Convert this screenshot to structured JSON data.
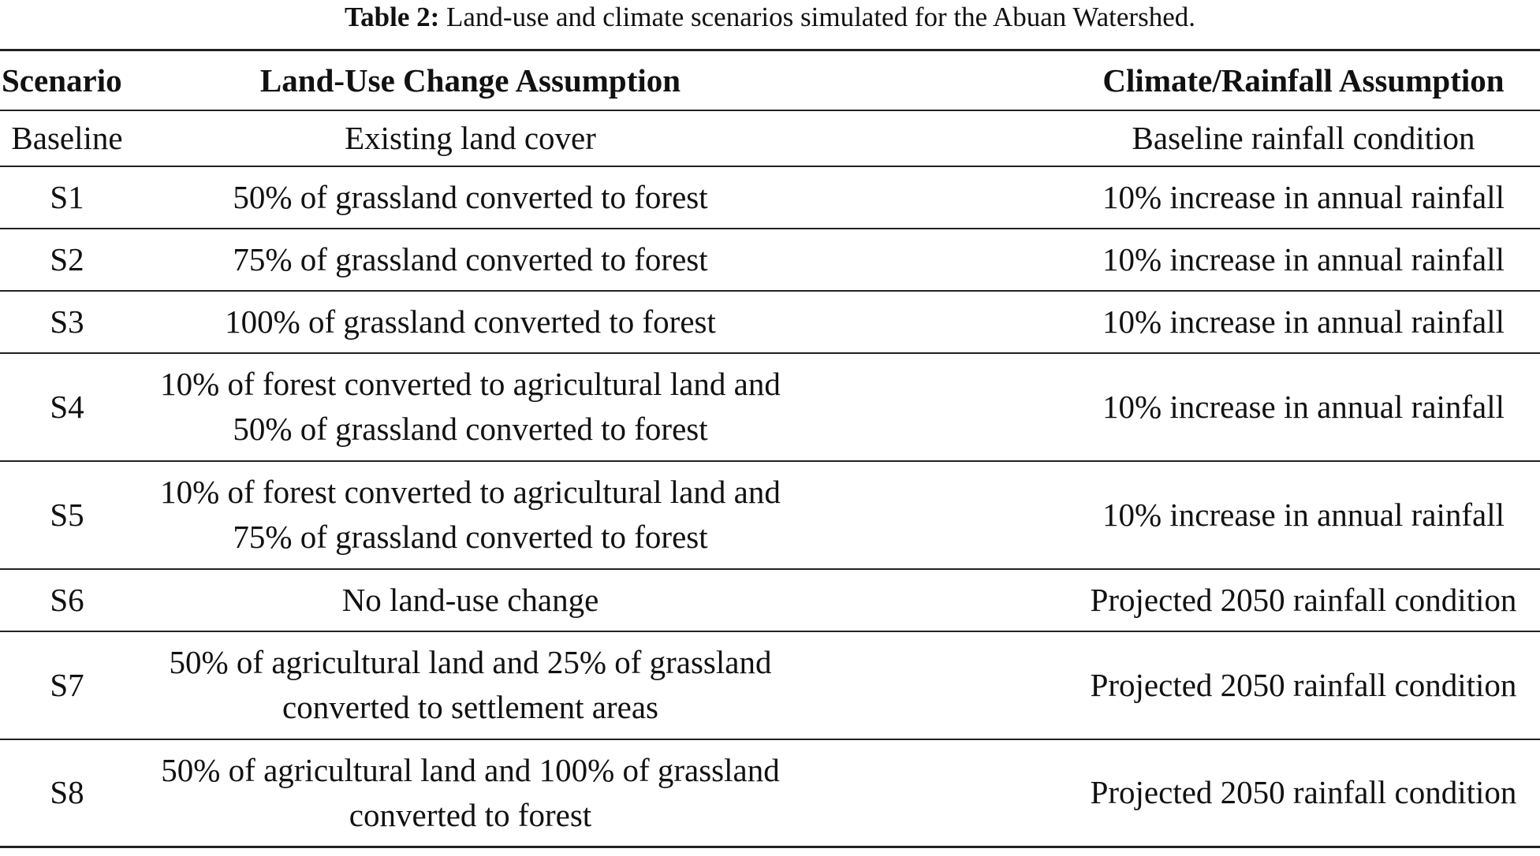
{
  "caption": {
    "label": "Table 2:",
    "text": "Land-use and climate scenarios simulated for the Abuan Watershed."
  },
  "table": {
    "headers": {
      "scenario": "Scenario",
      "land_use": "Land-Use Change Assumption",
      "climate": "Climate/Rainfall Assumption"
    },
    "rows": [
      {
        "scenario": "Baseline",
        "land_use": "Existing land cover",
        "climate": "Baseline rainfall condition"
      },
      {
        "scenario": "S1",
        "land_use": "50% of grassland converted to forest",
        "climate": "10% increase in annual rainfall"
      },
      {
        "scenario": "S2",
        "land_use": "75% of grassland converted to forest",
        "climate": "10% increase in annual rainfall"
      },
      {
        "scenario": "S3",
        "land_use": "100% of grassland converted to forest",
        "climate": "10% increase in annual rainfall"
      },
      {
        "scenario": "S4",
        "land_use": "10% of forest converted to agricultural land and 50% of grassland converted to forest",
        "climate": "10% increase in annual rainfall"
      },
      {
        "scenario": "S5",
        "land_use": "10% of forest converted to agricultural land and 75% of grassland converted to forest",
        "climate": "10% increase in annual rainfall"
      },
      {
        "scenario": "S6",
        "land_use": "No land-use change",
        "climate": "Projected 2050 rainfall condition"
      },
      {
        "scenario": "S7",
        "land_use": "50% of agricultural land and 25% of grassland converted to settlement areas",
        "climate": "Projected 2050 rainfall condition"
      },
      {
        "scenario": "S8",
        "land_use": "50% of agricultural land and 100% of grassland converted to forest",
        "climate": "Projected 2050 rainfall condition"
      }
    ]
  }
}
